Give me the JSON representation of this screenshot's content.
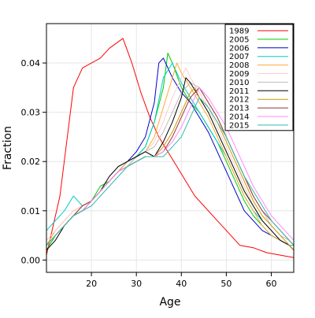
{
  "chart_data": {
    "type": "line",
    "title": "",
    "xlabel": "Age",
    "ylabel": "Fraction",
    "xlim": [
      10,
      65
    ],
    "ylim": [
      -0.0025,
      0.048
    ],
    "xticks": [
      20,
      30,
      40,
      50,
      60
    ],
    "yticks": [
      0.0,
      0.01,
      0.02,
      0.03,
      0.04
    ],
    "ytick_labels": [
      "0.00",
      "0.01",
      "0.02",
      "0.03",
      "0.04"
    ],
    "grid": true,
    "legend_position": "top-right",
    "series": [
      {
        "name": "1989",
        "color": "#ff0000",
        "x": [
          10,
          13,
          16,
          18,
          20,
          22,
          24,
          27,
          29,
          31,
          33,
          35,
          37,
          39,
          41,
          43,
          45,
          48,
          50,
          53,
          56,
          59,
          62,
          65
        ],
        "y": [
          0.001,
          0.013,
          0.035,
          0.039,
          0.04,
          0.041,
          0.043,
          0.045,
          0.04,
          0.034,
          0.029,
          0.025,
          0.022,
          0.019,
          0.016,
          0.013,
          0.011,
          0.008,
          0.006,
          0.003,
          0.0025,
          0.0015,
          0.001,
          0.0005
        ]
      },
      {
        "name": "2005",
        "color": "#00cc00",
        "x": [
          10,
          12,
          14,
          16,
          18,
          20,
          22,
          24,
          26,
          28,
          30,
          32,
          34,
          36,
          37,
          38,
          40,
          42,
          44,
          46,
          48,
          50,
          52,
          54,
          56,
          58,
          60,
          62,
          64,
          65
        ],
        "y": [
          0.002,
          0.005,
          0.007,
          0.009,
          0.01,
          0.012,
          0.015,
          0.016,
          0.018,
          0.019,
          0.021,
          0.023,
          0.028,
          0.035,
          0.042,
          0.04,
          0.035,
          0.032,
          0.03,
          0.027,
          0.024,
          0.02,
          0.016,
          0.012,
          0.009,
          0.007,
          0.005,
          0.004,
          0.003,
          0.002
        ]
      },
      {
        "name": "2006",
        "color": "#0000cc",
        "x": [
          10,
          12,
          14,
          16,
          18,
          20,
          22,
          24,
          26,
          28,
          30,
          32,
          34,
          35,
          36,
          38,
          40,
          42,
          44,
          46,
          48,
          50,
          52,
          54,
          56,
          58,
          60,
          62,
          64,
          65
        ],
        "y": [
          0.003,
          0.005,
          0.007,
          0.009,
          0.01,
          0.012,
          0.014,
          0.016,
          0.018,
          0.02,
          0.022,
          0.025,
          0.032,
          0.04,
          0.041,
          0.037,
          0.034,
          0.032,
          0.029,
          0.026,
          0.022,
          0.018,
          0.014,
          0.01,
          0.008,
          0.006,
          0.005,
          0.004,
          0.003,
          0.002
        ]
      },
      {
        "name": "2007",
        "color": "#00cccc",
        "x": [
          10,
          12,
          14,
          16,
          18,
          20,
          22,
          24,
          26,
          28,
          30,
          32,
          34,
          36,
          38,
          40,
          42,
          44,
          46,
          48,
          50,
          52,
          54,
          56,
          58,
          60,
          62,
          64,
          65
        ],
        "y": [
          0.006,
          0.008,
          0.01,
          0.013,
          0.011,
          0.012,
          0.014,
          0.016,
          0.018,
          0.02,
          0.021,
          0.023,
          0.028,
          0.037,
          0.04,
          0.036,
          0.033,
          0.03,
          0.027,
          0.024,
          0.021,
          0.017,
          0.013,
          0.01,
          0.008,
          0.006,
          0.004,
          0.003,
          0.003
        ]
      },
      {
        "name": "2008",
        "color": "#ffaa33",
        "x": [
          10,
          12,
          14,
          16,
          18,
          20,
          22,
          24,
          26,
          28,
          30,
          32,
          34,
          36,
          38,
          39,
          40,
          42,
          44,
          46,
          48,
          50,
          52,
          54,
          56,
          58,
          60,
          62,
          64,
          65
        ],
        "y": [
          0.003,
          0.006,
          0.008,
          0.01,
          0.011,
          0.012,
          0.014,
          0.016,
          0.018,
          0.02,
          0.021,
          0.022,
          0.025,
          0.031,
          0.037,
          0.04,
          0.038,
          0.035,
          0.032,
          0.029,
          0.025,
          0.021,
          0.017,
          0.013,
          0.01,
          0.007,
          0.005,
          0.004,
          0.003,
          0.002
        ]
      },
      {
        "name": "2009",
        "color": "#ffcccc",
        "x": [
          10,
          12,
          14,
          16,
          18,
          20,
          22,
          24,
          26,
          28,
          30,
          32,
          34,
          36,
          38,
          40,
          41,
          42,
          44,
          46,
          48,
          50,
          52,
          54,
          56,
          58,
          60,
          62,
          64,
          65
        ],
        "y": [
          0.004,
          0.006,
          0.008,
          0.01,
          0.011,
          0.012,
          0.014,
          0.016,
          0.018,
          0.019,
          0.021,
          0.022,
          0.024,
          0.028,
          0.033,
          0.037,
          0.039,
          0.037,
          0.034,
          0.031,
          0.027,
          0.023,
          0.019,
          0.015,
          0.011,
          0.008,
          0.006,
          0.004,
          0.003,
          0.002
        ]
      },
      {
        "name": "2010",
        "color": "#bbbbbb",
        "x": [
          10,
          12,
          14,
          16,
          18,
          20,
          22,
          24,
          26,
          28,
          30,
          32,
          34,
          36,
          38,
          40,
          42,
          44,
          46,
          48,
          50,
          52,
          54,
          56,
          58,
          60,
          62,
          64,
          65
        ],
        "y": [
          0.003,
          0.005,
          0.007,
          0.009,
          0.01,
          0.012,
          0.014,
          0.016,
          0.018,
          0.019,
          0.021,
          0.022,
          0.023,
          0.026,
          0.03,
          0.034,
          0.036,
          0.035,
          0.032,
          0.029,
          0.025,
          0.021,
          0.017,
          0.013,
          0.01,
          0.007,
          0.005,
          0.004,
          0.003
        ]
      },
      {
        "name": "2011",
        "color": "#000000",
        "x": [
          10,
          12,
          14,
          16,
          18,
          20,
          22,
          24,
          26,
          28,
          30,
          32,
          34,
          36,
          38,
          40,
          41,
          42,
          44,
          46,
          48,
          50,
          52,
          54,
          56,
          58,
          60,
          62,
          64,
          65
        ],
        "y": [
          0.002,
          0.004,
          0.007,
          0.009,
          0.01,
          0.012,
          0.014,
          0.017,
          0.019,
          0.02,
          0.021,
          0.022,
          0.021,
          0.024,
          0.028,
          0.033,
          0.037,
          0.036,
          0.033,
          0.03,
          0.026,
          0.022,
          0.018,
          0.014,
          0.011,
          0.008,
          0.006,
          0.004,
          0.003,
          0.002
        ]
      },
      {
        "name": "2012",
        "color": "#cc9900",
        "x": [
          10,
          12,
          14,
          16,
          18,
          20,
          22,
          24,
          26,
          28,
          30,
          32,
          34,
          36,
          38,
          40,
          42,
          43,
          44,
          46,
          48,
          50,
          52,
          54,
          56,
          58,
          60,
          62,
          64,
          65
        ],
        "y": [
          0.003,
          0.005,
          0.007,
          0.009,
          0.01,
          0.012,
          0.014,
          0.016,
          0.018,
          0.019,
          0.02,
          0.021,
          0.021,
          0.023,
          0.026,
          0.03,
          0.034,
          0.035,
          0.033,
          0.031,
          0.028,
          0.024,
          0.02,
          0.016,
          0.012,
          0.009,
          0.007,
          0.005,
          0.003,
          0.002
        ]
      },
      {
        "name": "2013",
        "color": "#993333",
        "x": [
          10,
          12,
          14,
          16,
          18,
          20,
          22,
          24,
          26,
          28,
          30,
          32,
          34,
          36,
          38,
          40,
          42,
          44,
          46,
          48,
          50,
          52,
          54,
          56,
          58,
          60,
          62,
          64,
          65
        ],
        "y": [
          0.003,
          0.005,
          0.007,
          0.009,
          0.011,
          0.012,
          0.014,
          0.016,
          0.018,
          0.019,
          0.02,
          0.021,
          0.021,
          0.022,
          0.025,
          0.029,
          0.033,
          0.035,
          0.032,
          0.029,
          0.025,
          0.021,
          0.017,
          0.013,
          0.01,
          0.008,
          0.006,
          0.004,
          0.003
        ]
      },
      {
        "name": "2014",
        "color": "#ff88ff",
        "x": [
          10,
          12,
          14,
          16,
          18,
          20,
          22,
          24,
          26,
          28,
          30,
          32,
          34,
          36,
          38,
          40,
          42,
          44,
          46,
          48,
          50,
          52,
          54,
          56,
          58,
          60,
          62,
          64,
          65
        ],
        "y": [
          0.003,
          0.005,
          0.007,
          0.009,
          0.01,
          0.012,
          0.014,
          0.016,
          0.018,
          0.019,
          0.02,
          0.021,
          0.021,
          0.022,
          0.024,
          0.027,
          0.031,
          0.035,
          0.033,
          0.03,
          0.027,
          0.023,
          0.019,
          0.015,
          0.012,
          0.009,
          0.007,
          0.005,
          0.004
        ]
      },
      {
        "name": "2015",
        "color": "#33bbaa",
        "x": [
          10,
          12,
          14,
          16,
          18,
          20,
          22,
          24,
          26,
          28,
          30,
          32,
          34,
          36,
          38,
          40,
          42,
          44,
          46,
          48,
          50,
          52,
          54,
          56,
          58,
          60,
          62,
          64,
          65
        ],
        "y": [
          0.003,
          0.005,
          0.007,
          0.009,
          0.01,
          0.011,
          0.013,
          0.015,
          0.017,
          0.019,
          0.02,
          0.021,
          0.021,
          0.021,
          0.023,
          0.025,
          0.029,
          0.033,
          0.031,
          0.028,
          0.025,
          0.021,
          0.017,
          0.014,
          0.011,
          0.008,
          0.006,
          0.004,
          0.003
        ]
      }
    ]
  }
}
